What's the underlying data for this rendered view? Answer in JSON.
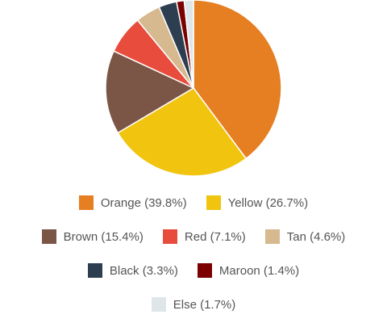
{
  "chart_data": {
    "type": "pie",
    "categories": [
      "Orange (39.8%)",
      "Yellow (26.7%)",
      "Brown (15.4%)",
      "Red (7.1%)",
      "Tan (4.6%)",
      "Black (3.3%)",
      "Maroon (1.4%)",
      "Else (1.7%)"
    ],
    "values": [
      39.8,
      26.7,
      15.4,
      7.1,
      4.6,
      3.3,
      1.4,
      1.7
    ],
    "colors": [
      "#e67e22",
      "#f1c40f",
      "#7b5546",
      "#e74c3c",
      "#d6b98f",
      "#2c3e50",
      "#7b0000",
      "#dfe6ea"
    ]
  }
}
